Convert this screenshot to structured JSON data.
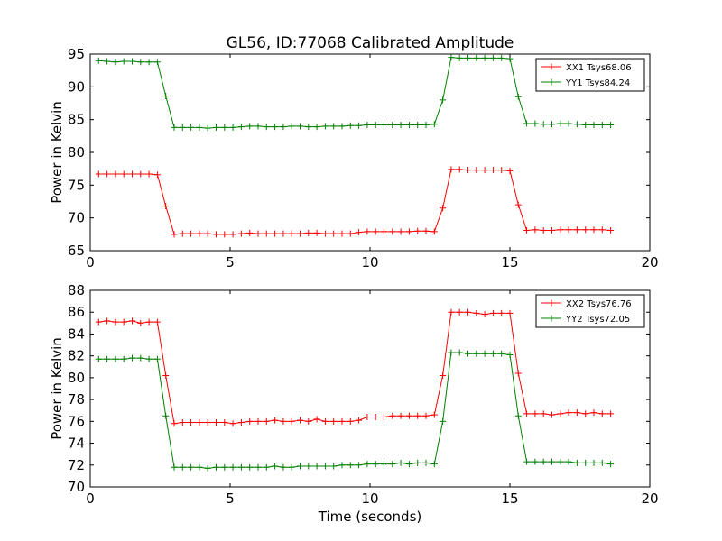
{
  "figure": {
    "title": "GL56, ID:77068 Calibrated Amplitude"
  },
  "colors": {
    "series1": "#ff0000",
    "series2": "#008000",
    "axes": "#000000",
    "background": "#ffffff"
  },
  "chart_data": [
    {
      "type": "line",
      "title": "GL56, ID:77068 Calibrated Amplitude",
      "xlabel": "",
      "ylabel": "Power in Kelvin",
      "xlim": [
        0,
        20
      ],
      "ylim": [
        65,
        95
      ],
      "xticks": [
        0,
        5,
        10,
        15,
        20
      ],
      "yticks": [
        65,
        70,
        75,
        80,
        85,
        90,
        95
      ],
      "grid": false,
      "legend_position": "top-right",
      "marker": "+",
      "x": [
        0.3,
        0.6,
        0.9,
        1.2,
        1.5,
        1.8,
        2.1,
        2.4,
        2.7,
        3.0,
        3.3,
        3.6,
        3.9,
        4.2,
        4.5,
        4.8,
        5.1,
        5.4,
        5.7,
        6.0,
        6.3,
        6.6,
        6.9,
        7.2,
        7.5,
        7.8,
        8.1,
        8.4,
        8.7,
        9.0,
        9.3,
        9.6,
        9.9,
        10.2,
        10.5,
        10.8,
        11.1,
        11.4,
        11.7,
        12.0,
        12.3,
        12.6,
        12.9,
        13.2,
        13.5,
        13.8,
        14.1,
        14.4,
        14.7,
        15.0,
        15.3,
        15.6,
        15.9,
        16.2,
        16.5,
        16.8,
        17.1,
        17.4,
        17.7,
        18.0,
        18.3,
        18.6
      ],
      "series": [
        {
          "name": "XX1 Tsys68.06",
          "color": "#ff0000",
          "values": [
            76.7,
            76.7,
            76.7,
            76.7,
            76.7,
            76.7,
            76.7,
            76.6,
            71.8,
            67.5,
            67.6,
            67.6,
            67.6,
            67.6,
            67.5,
            67.5,
            67.5,
            67.6,
            67.7,
            67.6,
            67.6,
            67.6,
            67.6,
            67.6,
            67.6,
            67.7,
            67.7,
            67.6,
            67.6,
            67.6,
            67.6,
            67.8,
            67.9,
            67.9,
            67.9,
            67.9,
            67.9,
            67.9,
            68.0,
            68.0,
            67.9,
            71.5,
            77.4,
            77.4,
            77.3,
            77.3,
            77.3,
            77.3,
            77.3,
            77.2,
            72.0,
            68.1,
            68.2,
            68.1,
            68.1,
            68.2,
            68.2,
            68.2,
            68.2,
            68.2,
            68.2,
            68.1
          ]
        },
        {
          "name": "YY1 Tsys84.24",
          "color": "#008000",
          "values": [
            94.0,
            93.9,
            93.8,
            93.9,
            93.9,
            93.8,
            93.8,
            93.8,
            88.6,
            83.8,
            83.8,
            83.8,
            83.8,
            83.7,
            83.8,
            83.8,
            83.8,
            83.9,
            84.0,
            84.0,
            83.9,
            83.9,
            83.9,
            84.0,
            84.0,
            83.9,
            83.9,
            84.0,
            84.0,
            84.0,
            84.1,
            84.1,
            84.2,
            84.2,
            84.2,
            84.2,
            84.2,
            84.2,
            84.2,
            84.2,
            84.3,
            88.0,
            94.5,
            94.4,
            94.4,
            94.4,
            94.4,
            94.4,
            94.4,
            94.3,
            88.5,
            84.4,
            84.4,
            84.3,
            84.3,
            84.4,
            84.4,
            84.3,
            84.2,
            84.2,
            84.2,
            84.2
          ]
        }
      ]
    },
    {
      "type": "line",
      "title": "",
      "xlabel": "Time (seconds)",
      "ylabel": "Power in Kelvin",
      "xlim": [
        0,
        20
      ],
      "ylim": [
        70,
        88
      ],
      "xticks": [
        0,
        5,
        10,
        15,
        20
      ],
      "yticks": [
        70,
        72,
        74,
        76,
        78,
        80,
        82,
        84,
        86,
        88
      ],
      "grid": false,
      "legend_position": "top-right",
      "marker": "+",
      "x": [
        0.3,
        0.6,
        0.9,
        1.2,
        1.5,
        1.8,
        2.1,
        2.4,
        2.7,
        3.0,
        3.3,
        3.6,
        3.9,
        4.2,
        4.5,
        4.8,
        5.1,
        5.4,
        5.7,
        6.0,
        6.3,
        6.6,
        6.9,
        7.2,
        7.5,
        7.8,
        8.1,
        8.4,
        8.7,
        9.0,
        9.3,
        9.6,
        9.9,
        10.2,
        10.5,
        10.8,
        11.1,
        11.4,
        11.7,
        12.0,
        12.3,
        12.6,
        12.9,
        13.2,
        13.5,
        13.8,
        14.1,
        14.4,
        14.7,
        15.0,
        15.3,
        15.6,
        15.9,
        16.2,
        16.5,
        16.8,
        17.1,
        17.4,
        17.7,
        18.0,
        18.3,
        18.6
      ],
      "series": [
        {
          "name": "XX2 Tsys76.76",
          "color": "#ff0000",
          "values": [
            85.1,
            85.2,
            85.1,
            85.1,
            85.2,
            85.0,
            85.1,
            85.1,
            80.2,
            75.8,
            75.9,
            75.9,
            75.9,
            75.9,
            75.9,
            75.9,
            75.8,
            75.9,
            76.0,
            76.0,
            76.0,
            76.1,
            76.0,
            76.0,
            76.1,
            76.0,
            76.2,
            76.0,
            76.0,
            76.0,
            76.0,
            76.1,
            76.4,
            76.4,
            76.4,
            76.5,
            76.5,
            76.5,
            76.5,
            76.5,
            76.6,
            80.2,
            86.0,
            86.0,
            86.0,
            85.9,
            85.8,
            85.9,
            85.9,
            85.9,
            80.4,
            76.7,
            76.7,
            76.7,
            76.6,
            76.7,
            76.8,
            76.8,
            76.7,
            76.8,
            76.7,
            76.7
          ]
        },
        {
          "name": "YY2 Tsys72.05",
          "color": "#008000",
          "values": [
            81.7,
            81.7,
            81.7,
            81.7,
            81.8,
            81.8,
            81.7,
            81.7,
            76.5,
            71.8,
            71.8,
            71.8,
            71.8,
            71.7,
            71.8,
            71.8,
            71.8,
            71.8,
            71.8,
            71.8,
            71.8,
            71.9,
            71.8,
            71.8,
            71.9,
            71.9,
            71.9,
            71.9,
            71.9,
            72.0,
            72.0,
            72.0,
            72.1,
            72.1,
            72.1,
            72.1,
            72.2,
            72.1,
            72.2,
            72.2,
            72.1,
            76.0,
            82.3,
            82.3,
            82.2,
            82.2,
            82.2,
            82.2,
            82.2,
            82.1,
            76.5,
            72.3,
            72.3,
            72.3,
            72.3,
            72.3,
            72.3,
            72.2,
            72.2,
            72.2,
            72.2,
            72.1
          ]
        }
      ]
    }
  ]
}
